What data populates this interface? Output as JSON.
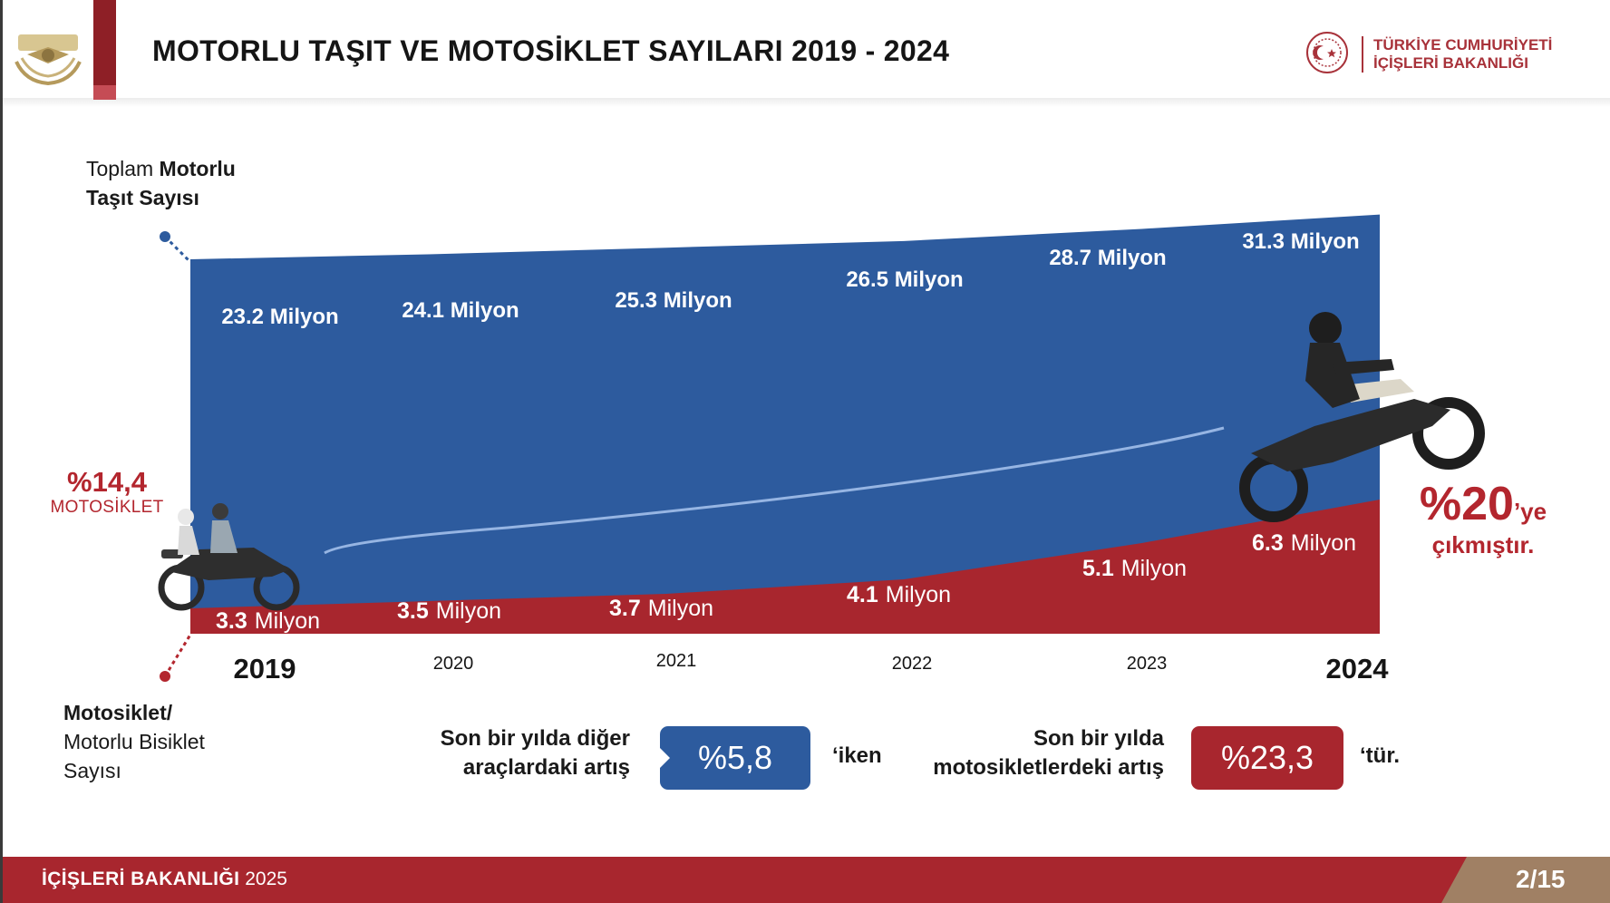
{
  "header": {
    "title": "MOTORLU TAŞIT VE MOTOSİKLET SAYILARI 2019 - 2024",
    "ministry_line1": "TÜRKİYE CUMHURİYETİ",
    "ministry_line2": "İÇİŞLERİ BAKANLIĞI"
  },
  "labels": {
    "total_line1_regular": "Toplam ",
    "total_line1_bold": "Motorlu",
    "total_line2": "Taşıt Sayısı",
    "moto_line1": "Motosiklet/",
    "moto_line2": "Motorlu Bisiklet",
    "moto_line3": "Sayısı",
    "moto_share_2019": "%14,4",
    "moto_share_label": "MOTOSİKLET",
    "moto_share_2024": "%20",
    "moto_share_2024_suffix": "’ye",
    "moto_share_2024_sub": "çıkmıştır."
  },
  "notes": {
    "other_line1": "Son bir yılda diğer",
    "other_line2": "araçlardaki artış",
    "other_value": "%5,8",
    "other_suffix": "‘iken",
    "moto_line1": "Son bir yılda",
    "moto_line2": "motosikletlerdeki artış",
    "moto_value": "%23,3",
    "moto_suffix": "‘tür."
  },
  "footer": {
    "org": "İÇİŞLERİ BAKANLIĞI",
    "year": "2025",
    "page": "2/15"
  },
  "colors": {
    "total_area": "#2d5b9e",
    "motorcycle_area": "#a8262e",
    "accent_red": "#b3262e",
    "dot_blue": "#2d5b9e",
    "dot_red": "#b3262e"
  },
  "chart_data": {
    "type": "area",
    "title": "MOTORLU TAŞIT VE MOTOSİKLET SAYILARI 2019 - 2024",
    "categories": [
      "2019",
      "2020",
      "2021",
      "2022",
      "2023",
      "2024"
    ],
    "unit": "Milyon",
    "series": [
      {
        "name": "Toplam Motorlu Taşıt Sayısı",
        "values": [
          23.2,
          24.1,
          25.3,
          26.5,
          28.7,
          31.3
        ],
        "labels": [
          "23.2 Milyon",
          "24.1 Milyon",
          "25.3 Milyon",
          "26.5 Milyon",
          "28.7 Milyon",
          "31.3 Milyon"
        ]
      },
      {
        "name": "Motosiklet/Motorlu Bisiklet Sayısı",
        "values": [
          3.3,
          3.5,
          3.7,
          4.1,
          5.1,
          6.3
        ],
        "labels": [
          "3.3",
          "3.5",
          "3.7",
          "4.1",
          "5.1",
          "6.3"
        ],
        "label_unit": "Milyon"
      }
    ],
    "bold_categories": [
      "2019",
      "2024"
    ],
    "grid": false,
    "legend": "none"
  }
}
